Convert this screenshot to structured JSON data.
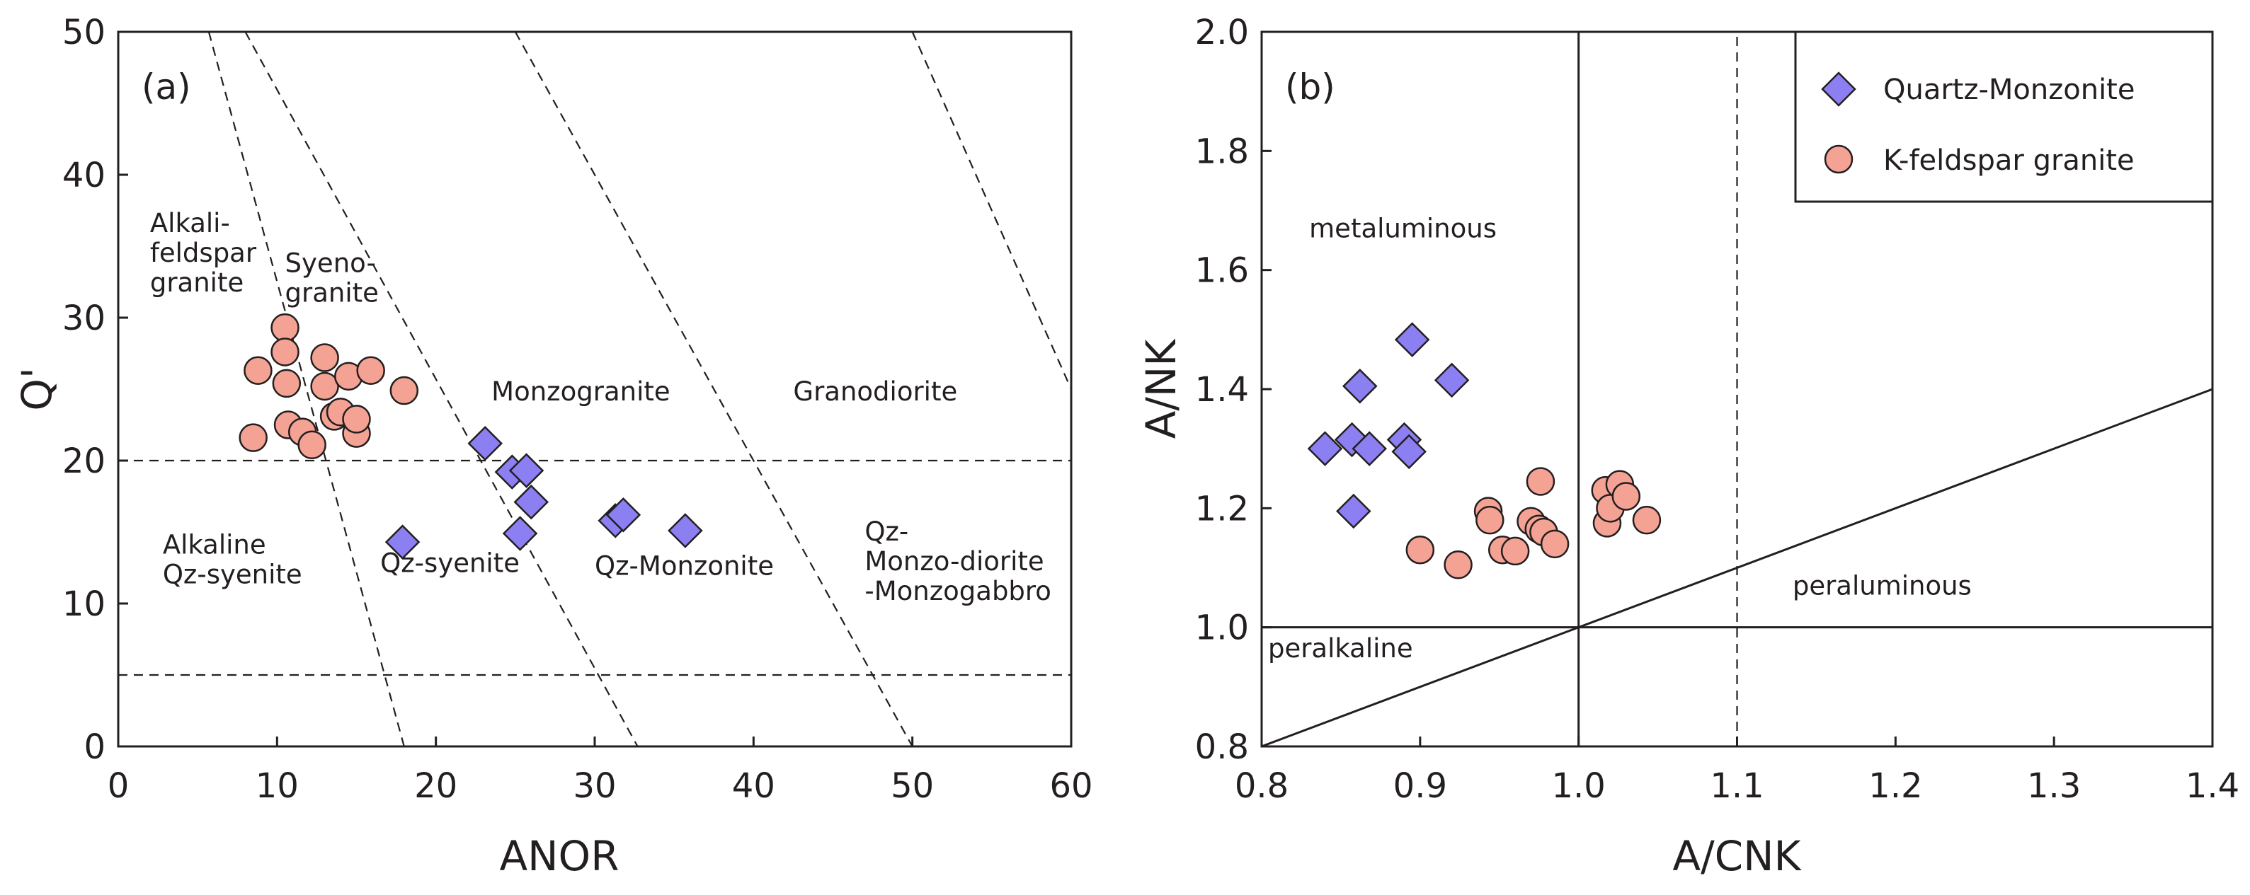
{
  "chart_data": [
    {
      "panel": "(a)",
      "type": "scatter",
      "xlabel": "ANOR",
      "ylabel": "Q'",
      "xlim": [
        0,
        60
      ],
      "ylim": [
        0,
        50
      ],
      "xticks": [
        0,
        10,
        20,
        30,
        40,
        50,
        60
      ],
      "yticks": [
        0,
        10,
        20,
        30,
        40,
        50
      ],
      "boundaries": [
        {
          "x": [
            5.7,
            18.0
          ],
          "y": [
            50,
            0
          ],
          "style": "dashed"
        },
        {
          "x": [
            8.0,
            32.7
          ],
          "y": [
            50,
            0
          ],
          "style": "dashed"
        },
        {
          "x": [
            25.0,
            50.0
          ],
          "y": [
            50,
            0
          ],
          "style": "dashed"
        },
        {
          "x": [
            50.0,
            60.0
          ],
          "y": [
            50,
            25
          ],
          "style": "dashed"
        },
        {
          "x": [
            0,
            60
          ],
          "y": [
            20,
            20
          ],
          "style": "dashed"
        },
        {
          "x": [
            0,
            60
          ],
          "y": [
            5,
            5
          ],
          "style": "dashed"
        }
      ],
      "regions": [
        {
          "lines": [
            "Alkali-",
            "feldspar",
            "granite"
          ],
          "x": 2.0,
          "y": 36.0
        },
        {
          "lines": [
            "Syeno-",
            "granite"
          ],
          "x": 10.5,
          "y": 33.2
        },
        {
          "lines": [
            "Monzogranite"
          ],
          "x": 23.5,
          "y": 24.2
        },
        {
          "lines": [
            "Granodiorite"
          ],
          "x": 42.5,
          "y": 24.2
        },
        {
          "lines": [
            "Alkaline",
            "Qz-syenite"
          ],
          "x": 2.8,
          "y": 13.5
        },
        {
          "lines": [
            "Qz-syenite"
          ],
          "x": 16.5,
          "y": 12.2
        },
        {
          "lines": [
            "Qz-Monzonite"
          ],
          "x": 30.0,
          "y": 12.0
        },
        {
          "lines": [
            "Qz-",
            "Monzo-diorite",
            "-Monzogabbro"
          ],
          "x": 47.0,
          "y": 14.4
        }
      ],
      "series": [
        {
          "name": "Quartz-Monzonite",
          "marker": "diamond",
          "color": "#8b7ff2",
          "x": [
            17.9,
            23.1,
            24.8,
            25.7,
            26.0,
            25.3,
            31.3,
            31.8,
            35.7
          ],
          "y": [
            14.3,
            21.2,
            19.2,
            19.3,
            17.1,
            14.9,
            15.8,
            16.2,
            15.1
          ]
        },
        {
          "name": "K-feldspar granite",
          "marker": "circle",
          "color": "#f4a293",
          "x": [
            8.5,
            8.8,
            10.5,
            10.5,
            10.6,
            10.7,
            11.6,
            12.2,
            13.0,
            13.0,
            13.6,
            14.0,
            14.5,
            15.0,
            15.0,
            15.9,
            18.0
          ],
          "y": [
            21.6,
            26.3,
            29.3,
            27.6,
            25.4,
            22.5,
            22.0,
            21.1,
            27.2,
            25.2,
            23.1,
            23.4,
            25.9,
            21.9,
            22.9,
            26.3,
            24.9
          ]
        }
      ]
    },
    {
      "panel": "(b)",
      "type": "scatter",
      "xlabel": "A/CNK",
      "ylabel": "A/NK",
      "xlim": [
        0.8,
        1.4
      ],
      "ylim": [
        0.8,
        2.0
      ],
      "xticks": [
        "0.8",
        "0.9",
        "1.0",
        "1.1",
        "1.2",
        "1.3",
        "1.4"
      ],
      "yticks": [
        "0.8",
        "1.0",
        "1.2",
        "1.4",
        "1.6",
        "1.8",
        "2.0"
      ],
      "boundaries": [
        {
          "x": [
            1.0,
            1.0
          ],
          "y": [
            0.8,
            2.0
          ],
          "style": "solid"
        },
        {
          "x": [
            0.8,
            1.4
          ],
          "y": [
            1.0,
            1.0
          ],
          "style": "solid"
        },
        {
          "x": [
            0.8,
            1.4
          ],
          "y": [
            0.8,
            1.4
          ],
          "style": "solid"
        },
        {
          "x": [
            1.1,
            1.1
          ],
          "y": [
            0.8,
            2.0
          ],
          "style": "dashed"
        }
      ],
      "regions": [
        {
          "lines": [
            "metaluminous"
          ],
          "x": 0.83,
          "y": 1.655
        },
        {
          "lines": [
            "peraluminous"
          ],
          "x": 1.135,
          "y": 1.055
        },
        {
          "lines": [
            "peralkaline"
          ],
          "x": 0.804,
          "y": 0.95
        }
      ],
      "series": [
        {
          "name": "Quartz-Monzonite",
          "marker": "diamond",
          "color": "#8b7ff2",
          "x": [
            0.84,
            0.857,
            0.858,
            0.862,
            0.868,
            0.89,
            0.893,
            0.895,
            0.92
          ],
          "y": [
            1.3,
            1.315,
            1.195,
            1.405,
            1.3,
            1.315,
            1.295,
            1.483,
            1.415
          ]
        },
        {
          "name": "K-feldspar granite",
          "marker": "circle",
          "color": "#f4a293",
          "x": [
            0.9,
            0.924,
            0.943,
            0.944,
            0.952,
            0.96,
            0.97,
            0.975,
            0.976,
            0.978,
            0.985,
            1.017,
            1.018,
            1.02,
            1.026,
            1.03,
            1.043
          ],
          "y": [
            1.13,
            1.105,
            1.195,
            1.18,
            1.13,
            1.128,
            1.178,
            1.165,
            1.245,
            1.16,
            1.14,
            1.23,
            1.175,
            1.2,
            1.24,
            1.22,
            1.18
          ]
        }
      ]
    }
  ],
  "legend": {
    "entries": [
      {
        "label": "Quartz-Monzonite",
        "marker": "diamond",
        "color": "#8b7ff2"
      },
      {
        "label": "K-feldspar granite",
        "marker": "circle",
        "color": "#f4a293"
      }
    ],
    "placement": "top-right of panel (b)"
  }
}
